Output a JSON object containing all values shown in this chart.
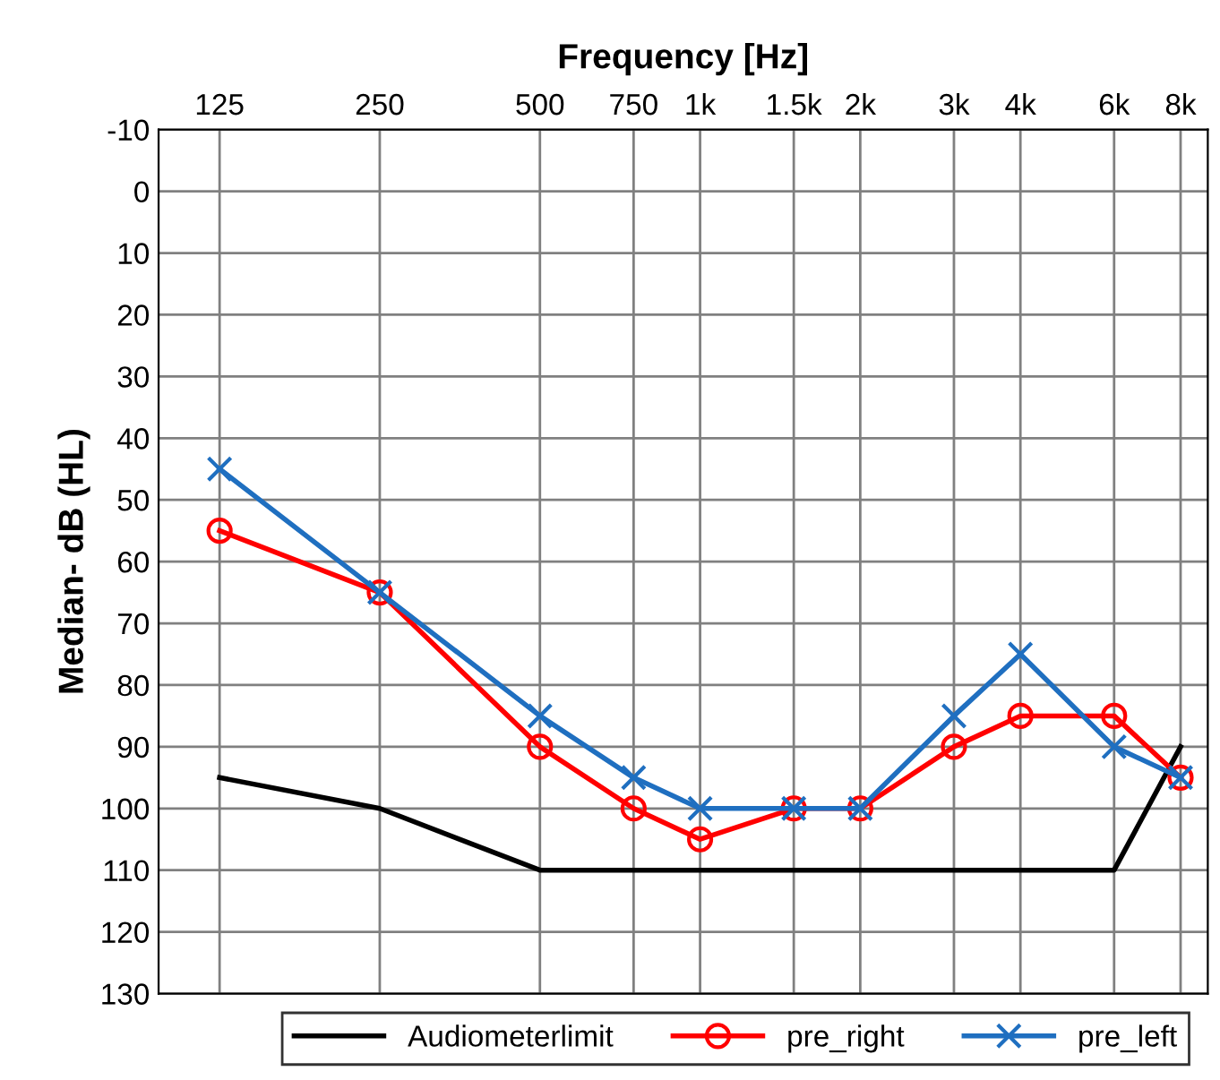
{
  "chart_data": {
    "type": "line",
    "xlabel": "Frequency [Hz]",
    "ylabel": "Median- dB (HL)",
    "x": [
      125,
      250,
      500,
      750,
      1000,
      1500,
      2000,
      3000,
      4000,
      6000,
      8000
    ],
    "log": "x",
    "xlim": [
      96,
      9000
    ],
    "xticks": [
      125,
      250,
      500,
      750,
      {
        "value": 1000,
        "label": "1k"
      },
      {
        "value": 1500,
        "label": "1.5k"
      },
      {
        "value": 2000,
        "label": "2k"
      },
      {
        "value": 3000,
        "label": "3k"
      },
      {
        "value": 4000,
        "label": "4k"
      },
      {
        "value": 6000,
        "label": "6k"
      },
      {
        "value": 8000,
        "label": "8k"
      }
    ],
    "ylim": [
      130,
      -10
    ],
    "yticks": [
      -10,
      0,
      10,
      20,
      30,
      40,
      50,
      60,
      70,
      80,
      90,
      100,
      110,
      120,
      130
    ],
    "grid": true,
    "legend": "bottom",
    "line_style": "solid",
    "series": [
      {
        "name": "Audiometerlimit",
        "color": "#000000",
        "marker": "none",
        "values": [
          95,
          100,
          110,
          110,
          110,
          110,
          110,
          110,
          110,
          110,
          90
        ]
      },
      {
        "name": "pre_right",
        "color": "#ff0000",
        "marker": "circle",
        "values": [
          55,
          65,
          90,
          100,
          105,
          100,
          100,
          90,
          85,
          85,
          95
        ]
      },
      {
        "name": "pre_left",
        "color": "#1f6fc0",
        "marker": "cross",
        "values": [
          45,
          65,
          85,
          95,
          100,
          100,
          100,
          85,
          75,
          90,
          95
        ]
      }
    ]
  }
}
